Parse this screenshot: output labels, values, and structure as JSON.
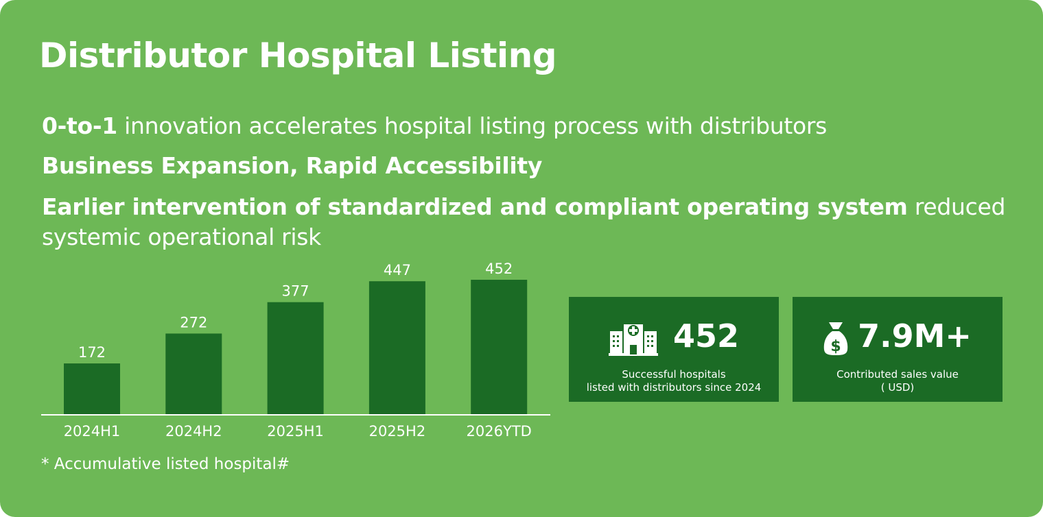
{
  "title": "Distributor Hospital Listing",
  "lines": {
    "l1_bold": "0-to-1",
    "l1_rest": " innovation accelerates hospital listing process with distributors",
    "l2_bold": "Business Expansion, Rapid Accessibility",
    "l3_bold": "Earlier intervention of standardized and compliant operating system",
    "l3_rest": " reduced",
    "l4": "systemic operational risk"
  },
  "chart_data": {
    "type": "bar",
    "categories": [
      "2024H1",
      "2024H2",
      "2025H1",
      "2025H2",
      "2026YTD"
    ],
    "values": [
      172,
      272,
      377,
      447,
      452
    ],
    "title": "",
    "xlabel": "",
    "ylabel": "",
    "ylim": [
      0,
      452
    ],
    "grid": false
  },
  "footnote": "* Accumulative listed hospital#",
  "stats": [
    {
      "icon": "hospital-icon",
      "value": "452",
      "caption1": "Successful hospitals",
      "caption2": "listed with distributors since 2024"
    },
    {
      "icon": "money-bag-icon",
      "value": "7.9M+",
      "caption1": "Contributed sales value",
      "caption2": "( USD)"
    }
  ],
  "colors": {
    "background": "#6db856",
    "bar": "#1b6b25",
    "text": "#ffffff"
  }
}
